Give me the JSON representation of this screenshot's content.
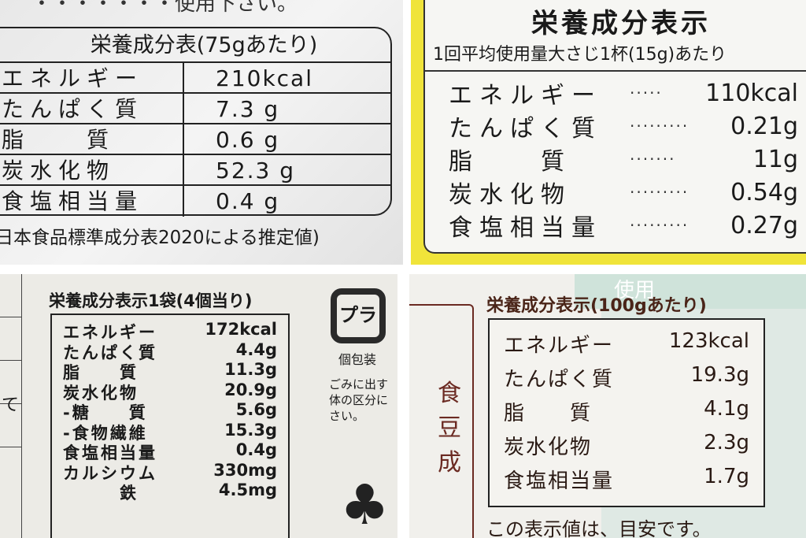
{
  "panel1": {
    "top_text": "・・・・・・・使用下さい。",
    "title": "栄養成分表(75gあたり)",
    "rows": [
      {
        "k": "エネルギー",
        "v": "210kcal"
      },
      {
        "k": "たんぱく質",
        "v": "7.3 g"
      },
      {
        "k": "脂　　質",
        "v": "0.6 g"
      },
      {
        "k": "炭水化物",
        "v": "52.3 g"
      },
      {
        "k": "食塩相当量",
        "v": "0.4 g"
      }
    ],
    "note": "日本食品標準成分表2020による推定値)"
  },
  "panel2": {
    "title": "栄養成分表示",
    "subtitle": "1回平均使用量大さじ1杯(15g)あたり",
    "rows": [
      {
        "k": "エネルギー",
        "d": "·····",
        "v": "110kcal"
      },
      {
        "k": "たんぱく質",
        "d": "·········",
        "v": "0.21g"
      },
      {
        "k": "脂　　質",
        "d": "·······",
        "v": "11g"
      },
      {
        "k": "炭水化物",
        "d": "·········",
        "v": "0.54g"
      },
      {
        "k": "食塩相当量",
        "d": "·········",
        "v": "0.27g"
      }
    ]
  },
  "panel3": {
    "side_text": "て",
    "title": "栄養成分表示1袋(4個当り)",
    "rows": [
      {
        "k": "エネルギー",
        "v": "172kcal"
      },
      {
        "k": "たんぱく質",
        "v": "4.4g"
      },
      {
        "k": "脂　　質",
        "v": "11.3g"
      },
      {
        "k": "炭水化物",
        "v": "20.9g"
      },
      {
        "k": "-糖　　質",
        "v": "5.6g"
      },
      {
        "k": "-食物繊維",
        "v": "15.3g"
      },
      {
        "k": "食塩相当量",
        "v": "0.4g"
      },
      {
        "k": "カルシウム",
        "v": "330mg"
      },
      {
        "k": "　　　鉄",
        "v": "4.5mg"
      }
    ],
    "recycle_mark": "プラ",
    "recycle_label": "個包装",
    "disposal_text": [
      "ごみに出す",
      "体の区分に",
      "さい。"
    ]
  },
  "panel4": {
    "bg_text": "使用",
    "side_text": [
      "食",
      "豆",
      "成"
    ],
    "title": "栄養成分表示(100gあたり)",
    "rows": [
      {
        "k": "エネルギー",
        "v": "123kcal"
      },
      {
        "k": "たんぱく質",
        "v": "19.3g"
      },
      {
        "k": "脂　　質",
        "v": "4.1g"
      },
      {
        "k": "炭水化物",
        "v": "2.3g"
      },
      {
        "k": "食塩相当量",
        "v": "1.7g"
      }
    ],
    "footer": "この表示値は、目安です。"
  },
  "colors": {
    "yellow": "#f0e43a",
    "brown": "#6b2a22",
    "mint": "#dfe9e4"
  }
}
